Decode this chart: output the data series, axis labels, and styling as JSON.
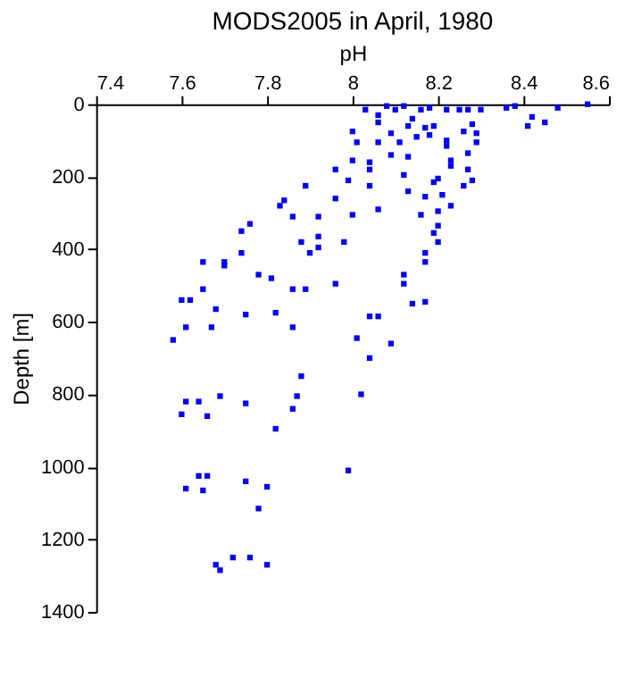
{
  "chart_data": {
    "type": "scatter",
    "title": "MODS2005 in April, 1980",
    "xlabel": "pH",
    "ylabel": "Depth [m]",
    "xlim": [
      7.4,
      8.6
    ],
    "xticks": [
      7.4,
      7.6,
      7.8,
      8,
      8.2,
      8.4,
      8.6
    ],
    "ylim": [
      1400,
      0
    ],
    "yticks": [
      0,
      200,
      400,
      600,
      800,
      1000,
      1200,
      1400
    ],
    "grid": false,
    "marker": "square",
    "series": [
      {
        "color": "#0000ff",
        "x": [
          8.03,
          8.08,
          8.06,
          8.1,
          8.12,
          8.16,
          8.18,
          8.14,
          8.22,
          8.25,
          8.27,
          8.3,
          8.36,
          8.38,
          8.42,
          8.41,
          8.45,
          8.48,
          8.55,
          8.06,
          8.0,
          8.01,
          8.06,
          8.09,
          8.11,
          8.13,
          8.15,
          8.17,
          8.19,
          8.18,
          8.22,
          8.22,
          8.26,
          8.28,
          8.29,
          8.29,
          8.27,
          8.09,
          8.13,
          8.04,
          8.0,
          7.96,
          8.04,
          7.99,
          8.04,
          8.12,
          8.19,
          8.2,
          8.23,
          8.23,
          8.27,
          8.28,
          8.26,
          8.21,
          8.13,
          8.17,
          8.23,
          8.2,
          8.16,
          8.2,
          8.19,
          8.2,
          8.17,
          8.17,
          8.06,
          8.0,
          7.96,
          7.89,
          7.84,
          7.83,
          7.86,
          7.92,
          7.76,
          7.74,
          7.88,
          7.92,
          7.92,
          7.98,
          7.9,
          7.74,
          7.65,
          7.7,
          7.7,
          7.78,
          7.81,
          7.65,
          7.6,
          7.62,
          7.68,
          7.61,
          7.67,
          7.58,
          7.75,
          7.82,
          7.86,
          7.86,
          7.89,
          7.96,
          8.12,
          8.12,
          8.17,
          8.14,
          8.04,
          8.06,
          8.01,
          8.09,
          8.04,
          7.88,
          7.87,
          8.02,
          7.61,
          7.64,
          7.69,
          7.75,
          7.6,
          7.66,
          7.86,
          7.82,
          7.64,
          7.66,
          7.99,
          7.61,
          7.65,
          7.75,
          7.8,
          7.78,
          7.68,
          7.69,
          7.72,
          7.76,
          7.8
        ],
        "values": [
          15,
          5,
          30,
          15,
          5,
          15,
          10,
          40,
          15,
          15,
          15,
          15,
          10,
          5,
          35,
          60,
          50,
          10,
          0,
          50,
          75,
          105,
          105,
          80,
          105,
          60,
          90,
          65,
          60,
          85,
          100,
          115,
          75,
          55,
          80,
          105,
          135,
          140,
          145,
          160,
          155,
          180,
          180,
          210,
          225,
          195,
          215,
          205,
          170,
          155,
          180,
          210,
          225,
          250,
          240,
          255,
          280,
          295,
          305,
          335,
          355,
          380,
          410,
          435,
          290,
          305,
          260,
          225,
          265,
          280,
          310,
          310,
          330,
          350,
          380,
          365,
          395,
          380,
          410,
          410,
          435,
          435,
          445,
          470,
          480,
          510,
          540,
          540,
          565,
          615,
          615,
          650,
          580,
          575,
          615,
          510,
          510,
          495,
          470,
          495,
          545,
          550,
          585,
          585,
          645,
          660,
          700,
          750,
          805,
          800,
          820,
          820,
          805,
          825,
          855,
          860,
          840,
          895,
          1025,
          1025,
          1010,
          1060,
          1065,
          1040,
          1055,
          1115,
          1270,
          1285,
          1250,
          1250,
          1270
        ]
      }
    ]
  }
}
